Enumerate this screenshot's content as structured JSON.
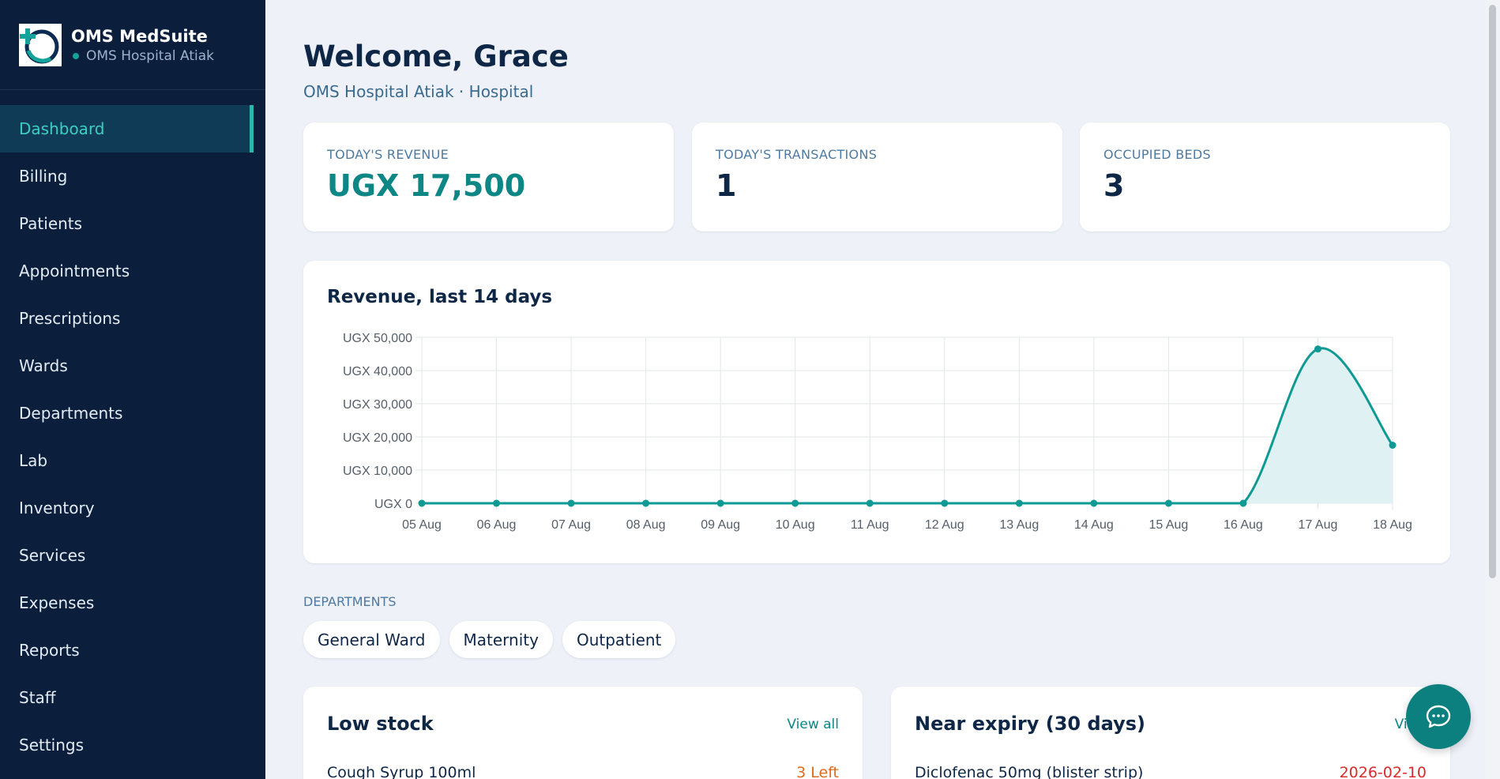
{
  "sidebar": {
    "brand_name": "OMS MedSuite",
    "brand_sub": "OMS Hospital Atiak",
    "items": [
      {
        "label": "Dashboard",
        "active": true
      },
      {
        "label": "Billing"
      },
      {
        "label": "Patients"
      },
      {
        "label": "Appointments"
      },
      {
        "label": "Prescriptions"
      },
      {
        "label": "Wards"
      },
      {
        "label": "Departments"
      },
      {
        "label": "Lab"
      },
      {
        "label": "Inventory"
      },
      {
        "label": "Services"
      },
      {
        "label": "Expenses"
      },
      {
        "label": "Reports"
      },
      {
        "label": "Staff"
      },
      {
        "label": "Settings"
      }
    ]
  },
  "header": {
    "welcome": "Welcome, Grace",
    "subtitle": "OMS Hospital Atiak · Hospital"
  },
  "stats": [
    {
      "label": "TODAY'S REVENUE",
      "value": "UGX 17,500"
    },
    {
      "label": "TODAY'S TRANSACTIONS",
      "value": "1"
    },
    {
      "label": "OCCUPIED BEDS",
      "value": "3"
    }
  ],
  "chart_data": {
    "type": "area",
    "title": "Revenue, last 14 days",
    "x": [
      "05 Aug",
      "06 Aug",
      "07 Aug",
      "08 Aug",
      "09 Aug",
      "10 Aug",
      "11 Aug",
      "12 Aug",
      "13 Aug",
      "14 Aug",
      "15 Aug",
      "16 Aug",
      "17 Aug",
      "18 Aug"
    ],
    "series": [
      {
        "values": [
          0,
          0,
          0,
          0,
          0,
          0,
          0,
          0,
          0,
          0,
          0,
          0,
          46500,
          17500
        ]
      }
    ],
    "y_ticks": [
      "UGX 0",
      "UGX 10,000",
      "UGX 20,000",
      "UGX 30,000",
      "UGX 40,000",
      "UGX 50,000"
    ],
    "ylim": [
      0,
      50000
    ],
    "grid": true,
    "color": "#0e9a94",
    "fill": "#dff1f2"
  },
  "departments": {
    "label": "DEPARTMENTS",
    "chips": [
      "General Ward",
      "Maternity",
      "Outpatient"
    ]
  },
  "low_stock": {
    "title": "Low stock",
    "link": "View all",
    "row_name": "Cough Syrup 100ml",
    "row_value": "3 Left"
  },
  "near_expiry": {
    "title": "Near expiry (30 days)",
    "link": "View",
    "row_name": "Diclofenac 50mg (blister strip)",
    "row_value": "2026-02-10"
  },
  "chat": {
    "icon": "chat-icon"
  },
  "colors": {
    "sidebar": "#0b1f3d",
    "accent": "#0d8686",
    "background": "#eef2f8"
  }
}
